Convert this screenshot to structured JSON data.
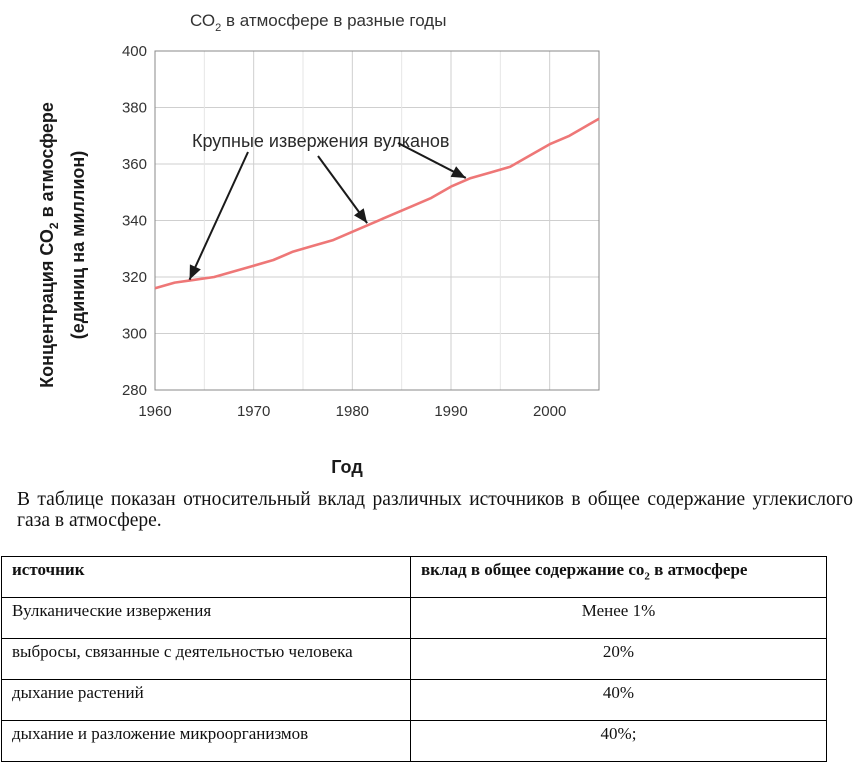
{
  "chart_data": {
    "type": "line",
    "title_main": "СО",
    "title_sub": "2",
    "title_rest": " в атмосфере в разные годы",
    "xlabel": "Год",
    "ylabel_line1_main": "Концентрация СО",
    "ylabel_line1_sub": "2",
    "ylabel_line1_rest": " в атмосфере",
    "ylabel_line2": "(единиц на миллион)",
    "xlim": [
      1960,
      2005
    ],
    "ylim": [
      280,
      400
    ],
    "xticks": [
      "1960",
      "1970",
      "1980",
      "1990",
      "2000"
    ],
    "yticks": [
      "280",
      "300",
      "320",
      "340",
      "360",
      "380",
      "400"
    ],
    "grid": true,
    "series_color": "#ee7777",
    "series": [
      {
        "x": [
          1960,
          1962,
          1964,
          1966,
          1968,
          1970,
          1972,
          1974,
          1976,
          1978,
          1980,
          1982,
          1984,
          1986,
          1988,
          1990,
          1992,
          1994,
          1996,
          1998,
          2000,
          2002,
          2004,
          2005
        ],
        "y": [
          316,
          318,
          319,
          320,
          322,
          324,
          326,
          329,
          331,
          333,
          336,
          339,
          342,
          345,
          348,
          352,
          355,
          357,
          359,
          363,
          367,
          370,
          374,
          376
        ]
      }
    ],
    "annotation": {
      "text": "Крупные извержения вулканов",
      "arrow_targets": [
        {
          "x": 1963.5,
          "y": 318
        },
        {
          "x": 1981.5,
          "y": 338
        },
        {
          "x": 1991.5,
          "y": 354
        }
      ]
    }
  },
  "paragraph": "В таблице показан относительный вклад различных источников в общее содержание углекислого газа в атмосфере.",
  "table": {
    "header_source": "источник",
    "header_contribution_main": "вклад в общее содержание со",
    "header_contribution_sub": "2",
    "header_contribution_rest": " в атмосфере",
    "rows": [
      {
        "source": "Вулканические извержения",
        "value": "Менее 1%"
      },
      {
        "source": "выбросы, связанные с деятельностью человека",
        "value": "20%"
      },
      {
        "source": "дыхание растений",
        "value": "40%"
      },
      {
        "source": "дыхание и разложение микроорганизмов",
        "value": "40%;"
      }
    ]
  }
}
